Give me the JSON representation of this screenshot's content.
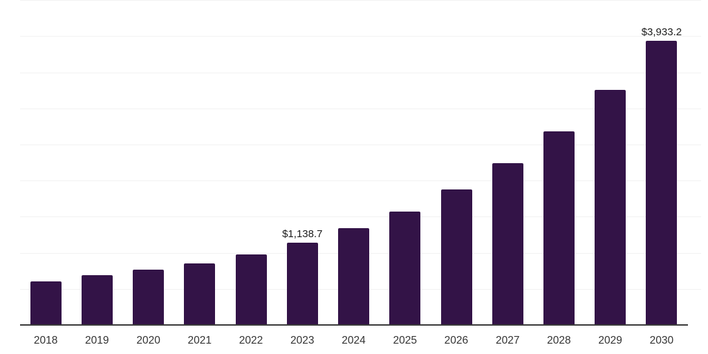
{
  "chart_data": {
    "type": "bar",
    "title": "",
    "xlabel": "",
    "ylabel": "",
    "categories": [
      "2018",
      "2019",
      "2020",
      "2021",
      "2022",
      "2023",
      "2024",
      "2025",
      "2026",
      "2027",
      "2028",
      "2029",
      "2030"
    ],
    "values": [
      604,
      693,
      766,
      855,
      980,
      1138.7,
      1343,
      1576,
      1875,
      2242,
      2682,
      3257,
      3933.2
    ],
    "value_labels": {
      "2023": "$1,138.7",
      "2030": "$3,933.2"
    },
    "ylim": [
      0,
      4500
    ],
    "gridline_step": 500,
    "grid": "horizontal-only, no y-axis tick labels",
    "legend": "none",
    "bar_color": "#331347",
    "axis_color": "#3a3a3a",
    "gridline_color": "#f2f2f2",
    "tick_label_color": "#333333",
    "annotation_color": "#1a1a1a"
  }
}
